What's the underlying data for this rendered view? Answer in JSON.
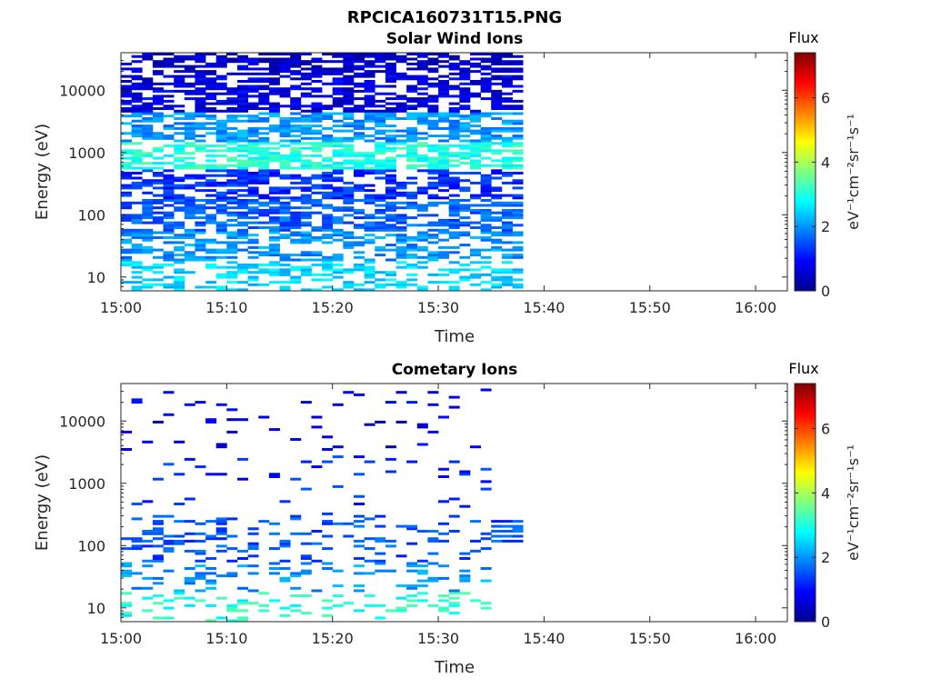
{
  "figure_title": "RPCICA160731T15.PNG",
  "colorbar": {
    "label": "Flux",
    "unit_text": "eV⁻¹cm⁻²sr⁻¹s⁻¹",
    "ticks": [
      "0",
      "2",
      "4",
      "6"
    ],
    "range": [
      0,
      7.4
    ],
    "colormap": "jet"
  },
  "chart_data": [
    {
      "type": "heatmap",
      "title": "Solar Wind Ions",
      "xlabel": "Time",
      "ylabel": "Energy (eV)",
      "x_ticks": [
        "15:00",
        "15:10",
        "15:20",
        "15:30",
        "15:40",
        "15:50",
        "16:00"
      ],
      "y_ticks": [
        "10",
        "100",
        "1000",
        "10000"
      ],
      "yscale": "log",
      "ylim": [
        6,
        40000
      ],
      "xlim_minutes": [
        0,
        63
      ],
      "data_end_minute": 38,
      "summary_by_energy": [
        {
          "energy": 10,
          "flux": 2.5
        },
        {
          "energy": 30,
          "flux": 2.0
        },
        {
          "energy": 100,
          "flux": 1.6
        },
        {
          "energy": 300,
          "flux": 1.2
        },
        {
          "energy": 1000,
          "flux": 3.0
        },
        {
          "energy": 2000,
          "flux": 2.0
        },
        {
          "energy": 10000,
          "flux": 0.7
        },
        {
          "energy": 30000,
          "flux": 0.5
        }
      ]
    },
    {
      "type": "heatmap",
      "title": "Cometary Ions",
      "xlabel": "Time",
      "ylabel": "Energy (eV)",
      "x_ticks": [
        "15:00",
        "15:10",
        "15:20",
        "15:30",
        "15:40",
        "15:50",
        "16:00"
      ],
      "y_ticks": [
        "10",
        "100",
        "1000",
        "10000"
      ],
      "yscale": "log",
      "ylim": [
        6,
        40000
      ],
      "xlim_minutes": [
        0,
        63
      ],
      "data_end_minute": 38,
      "summary_by_energy": [
        {
          "energy": 10,
          "flux": 3.0
        },
        {
          "energy": 30,
          "flux": 2.0
        },
        {
          "energy": 100,
          "flux": 1.5
        },
        {
          "energy": 1000,
          "flux": 1.2
        },
        {
          "energy": 10000,
          "flux": 0.7
        }
      ]
    }
  ]
}
